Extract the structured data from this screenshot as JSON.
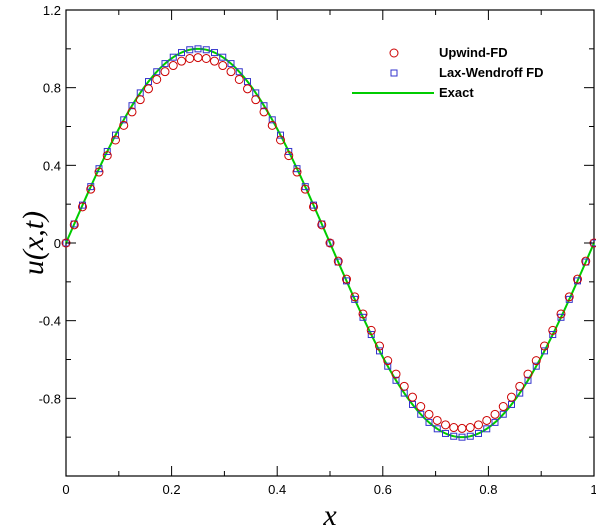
{
  "chart_data": {
    "type": "scatter",
    "xlabel": "x",
    "ylabel": "u(x,t)",
    "xlim": [
      0,
      1
    ],
    "ylim": [
      -1.2,
      1.2
    ],
    "x_ticks": [
      "0",
      "0.2",
      "0.4",
      "0.6",
      "0.8",
      "1"
    ],
    "y_ticks": [
      "-0.8",
      "-0.4",
      "0",
      "0.4",
      "0.8",
      "1.2"
    ],
    "grid": false,
    "legend_position": "top-right",
    "sample_count": 65,
    "series": [
      {
        "name": "Upwind-FD",
        "marker": "circle",
        "color": "#cc0000",
        "amplitude": 0.955,
        "function": "amplitude * sin(2*pi*x)"
      },
      {
        "name": "Lax-Wendroff FD",
        "marker": "square",
        "color": "#3333cc",
        "amplitude": 1.0,
        "function": "sin(2*pi*x)"
      },
      {
        "name": "Exact",
        "marker": "line",
        "color": "#00cc00",
        "amplitude": 1.0,
        "function": "sin(2*pi*x)"
      }
    ]
  }
}
